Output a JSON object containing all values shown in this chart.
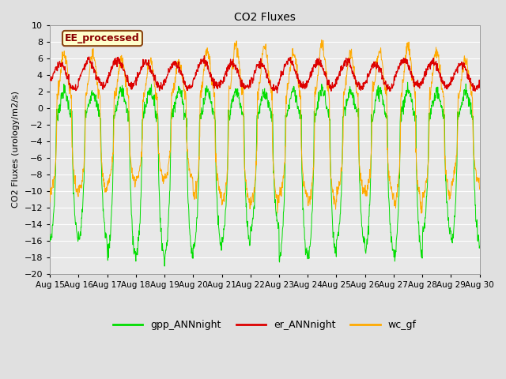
{
  "title": "CO2 Fluxes",
  "ylabel": "CO2 Fluxes (urology/m2/s)",
  "ylim": [
    -20,
    10
  ],
  "yticks": [
    -20,
    -18,
    -16,
    -14,
    -12,
    -10,
    -8,
    -6,
    -4,
    -2,
    0,
    2,
    4,
    6,
    8,
    10
  ],
  "xticklabels": [
    "Aug 15",
    "Aug 16",
    "Aug 17",
    "Aug 18",
    "Aug 19",
    "Aug 20",
    "Aug 21",
    "Aug 22",
    "Aug 23",
    "Aug 24",
    "Aug 25",
    "Aug 26",
    "Aug 27",
    "Aug 28",
    "Aug 29",
    "Aug 30"
  ],
  "n_days": 15,
  "points_per_day": 96,
  "bg_color": "#e0e0e0",
  "plot_bg_color": "#e8e8e8",
  "grid_color": "#ffffff",
  "line_green": "#00dd00",
  "line_red": "#dd0000",
  "line_orange": "#ffaa00",
  "legend_labels": [
    "gpp_ANNnight",
    "er_ANNnight",
    "wc_gf"
  ],
  "annotation_text": "EE_processed",
  "annotation_fgcolor": "#8b0000",
  "annotation_bgcolor": "#ffffcc",
  "annotation_edgecolor": "#8b4513"
}
